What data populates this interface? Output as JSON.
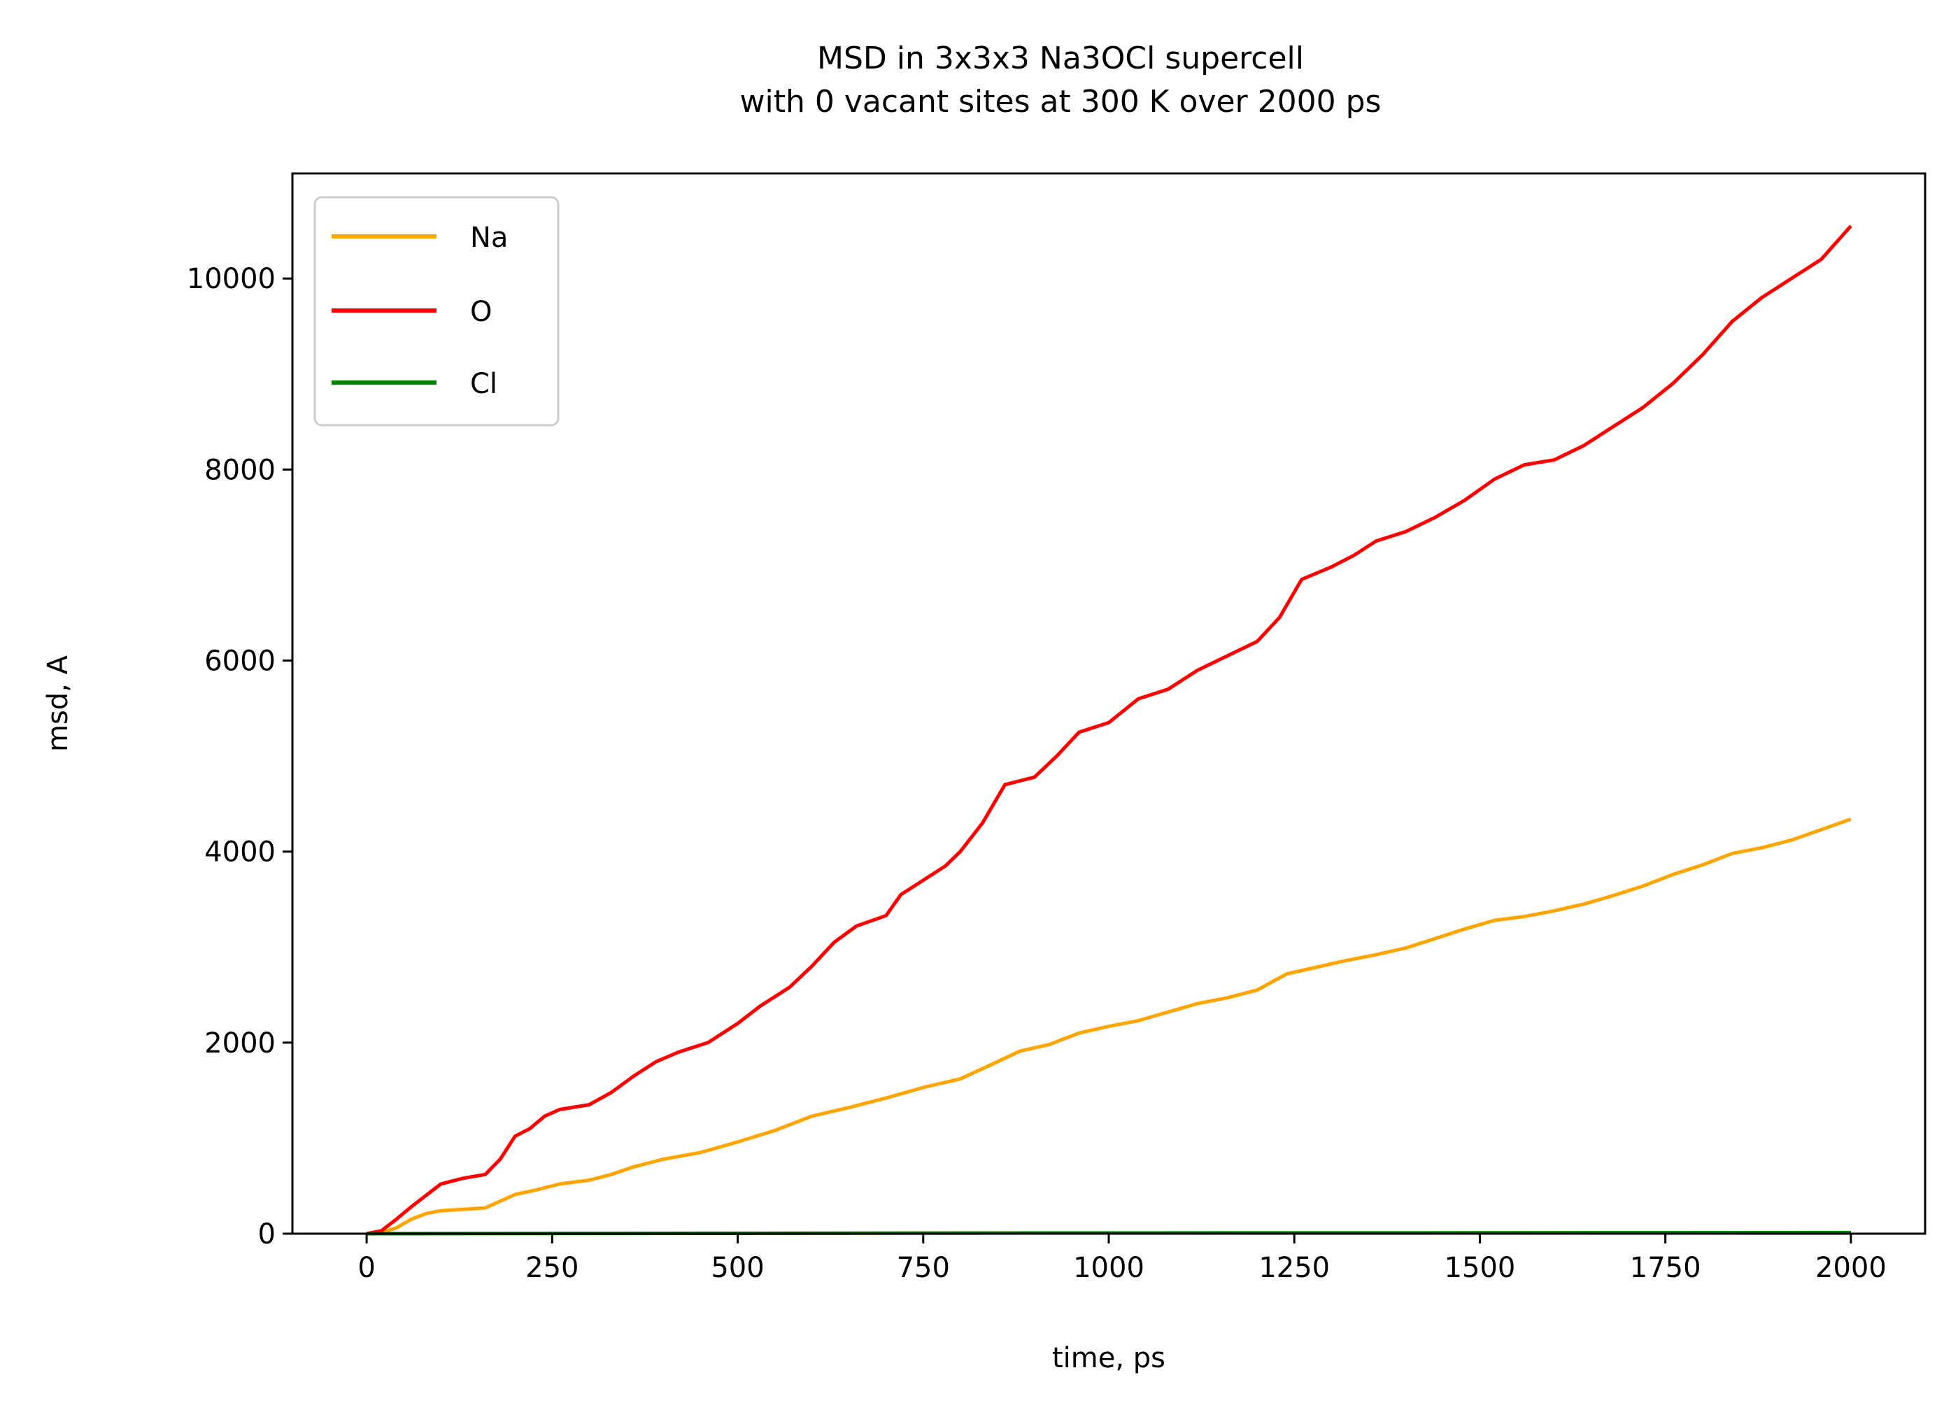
{
  "chart_data": {
    "type": "line",
    "title_lines": [
      "MSD in 3x3x3 Na3OCl supercell",
      "with 0 vacant sites at 300 K over 2000 ps"
    ],
    "xlabel": "time, ps",
    "ylabel": "msd, A",
    "xlim": [
      -100,
      2100
    ],
    "ylim": [
      0,
      11100
    ],
    "xticks": [
      0,
      250,
      500,
      750,
      1000,
      1250,
      1500,
      1750,
      2000
    ],
    "yticks": [
      0,
      2000,
      4000,
      6000,
      8000,
      10000
    ],
    "grid": false,
    "legend_position": "upper-left",
    "series": [
      {
        "name": "Na",
        "color": "#FFA500",
        "points": [
          [
            0,
            0
          ],
          [
            20,
            10
          ],
          [
            40,
            60
          ],
          [
            60,
            150
          ],
          [
            80,
            210
          ],
          [
            100,
            240
          ],
          [
            130,
            255
          ],
          [
            160,
            270
          ],
          [
            180,
            340
          ],
          [
            200,
            410
          ],
          [
            230,
            460
          ],
          [
            260,
            520
          ],
          [
            300,
            560
          ],
          [
            330,
            620
          ],
          [
            360,
            700
          ],
          [
            400,
            780
          ],
          [
            450,
            850
          ],
          [
            500,
            960
          ],
          [
            550,
            1080
          ],
          [
            600,
            1230
          ],
          [
            650,
            1320
          ],
          [
            700,
            1420
          ],
          [
            750,
            1530
          ],
          [
            800,
            1620
          ],
          [
            850,
            1800
          ],
          [
            880,
            1910
          ],
          [
            920,
            1980
          ],
          [
            960,
            2100
          ],
          [
            1000,
            2170
          ],
          [
            1040,
            2230
          ],
          [
            1080,
            2320
          ],
          [
            1120,
            2410
          ],
          [
            1160,
            2470
          ],
          [
            1200,
            2550
          ],
          [
            1240,
            2720
          ],
          [
            1280,
            2790
          ],
          [
            1320,
            2860
          ],
          [
            1360,
            2920
          ],
          [
            1400,
            2990
          ],
          [
            1440,
            3090
          ],
          [
            1480,
            3190
          ],
          [
            1520,
            3280
          ],
          [
            1560,
            3320
          ],
          [
            1600,
            3380
          ],
          [
            1640,
            3450
          ],
          [
            1680,
            3540
          ],
          [
            1720,
            3640
          ],
          [
            1760,
            3760
          ],
          [
            1800,
            3860
          ],
          [
            1840,
            3980
          ],
          [
            1880,
            4040
          ],
          [
            1920,
            4120
          ],
          [
            1960,
            4230
          ],
          [
            2000,
            4340
          ]
        ]
      },
      {
        "name": "O",
        "color": "#FF0000",
        "points": [
          [
            0,
            0
          ],
          [
            20,
            30
          ],
          [
            40,
            150
          ],
          [
            60,
            280
          ],
          [
            80,
            400
          ],
          [
            100,
            520
          ],
          [
            130,
            580
          ],
          [
            160,
            620
          ],
          [
            180,
            780
          ],
          [
            200,
            1020
          ],
          [
            220,
            1100
          ],
          [
            240,
            1230
          ],
          [
            260,
            1300
          ],
          [
            300,
            1350
          ],
          [
            330,
            1480
          ],
          [
            360,
            1650
          ],
          [
            390,
            1800
          ],
          [
            420,
            1900
          ],
          [
            460,
            2000
          ],
          [
            500,
            2200
          ],
          [
            530,
            2380
          ],
          [
            570,
            2580
          ],
          [
            600,
            2800
          ],
          [
            630,
            3050
          ],
          [
            660,
            3220
          ],
          [
            700,
            3330
          ],
          [
            720,
            3550
          ],
          [
            750,
            3700
          ],
          [
            780,
            3850
          ],
          [
            800,
            4000
          ],
          [
            830,
            4300
          ],
          [
            860,
            4700
          ],
          [
            900,
            4780
          ],
          [
            930,
            5000
          ],
          [
            960,
            5250
          ],
          [
            1000,
            5350
          ],
          [
            1040,
            5600
          ],
          [
            1080,
            5700
          ],
          [
            1120,
            5900
          ],
          [
            1160,
            6050
          ],
          [
            1200,
            6200
          ],
          [
            1230,
            6450
          ],
          [
            1260,
            6850
          ],
          [
            1300,
            6980
          ],
          [
            1330,
            7100
          ],
          [
            1360,
            7250
          ],
          [
            1400,
            7350
          ],
          [
            1440,
            7500
          ],
          [
            1480,
            7680
          ],
          [
            1520,
            7900
          ],
          [
            1560,
            8050
          ],
          [
            1600,
            8100
          ],
          [
            1640,
            8250
          ],
          [
            1680,
            8450
          ],
          [
            1720,
            8650
          ],
          [
            1760,
            8900
          ],
          [
            1800,
            9200
          ],
          [
            1840,
            9550
          ],
          [
            1880,
            9800
          ],
          [
            1920,
            10000
          ],
          [
            1960,
            10200
          ],
          [
            2000,
            10550
          ]
        ]
      },
      {
        "name": "Cl",
        "color": "#008000",
        "points": [
          [
            0,
            0
          ],
          [
            500,
            4
          ],
          [
            1000,
            7
          ],
          [
            1500,
            9
          ],
          [
            2000,
            12
          ]
        ]
      }
    ]
  }
}
